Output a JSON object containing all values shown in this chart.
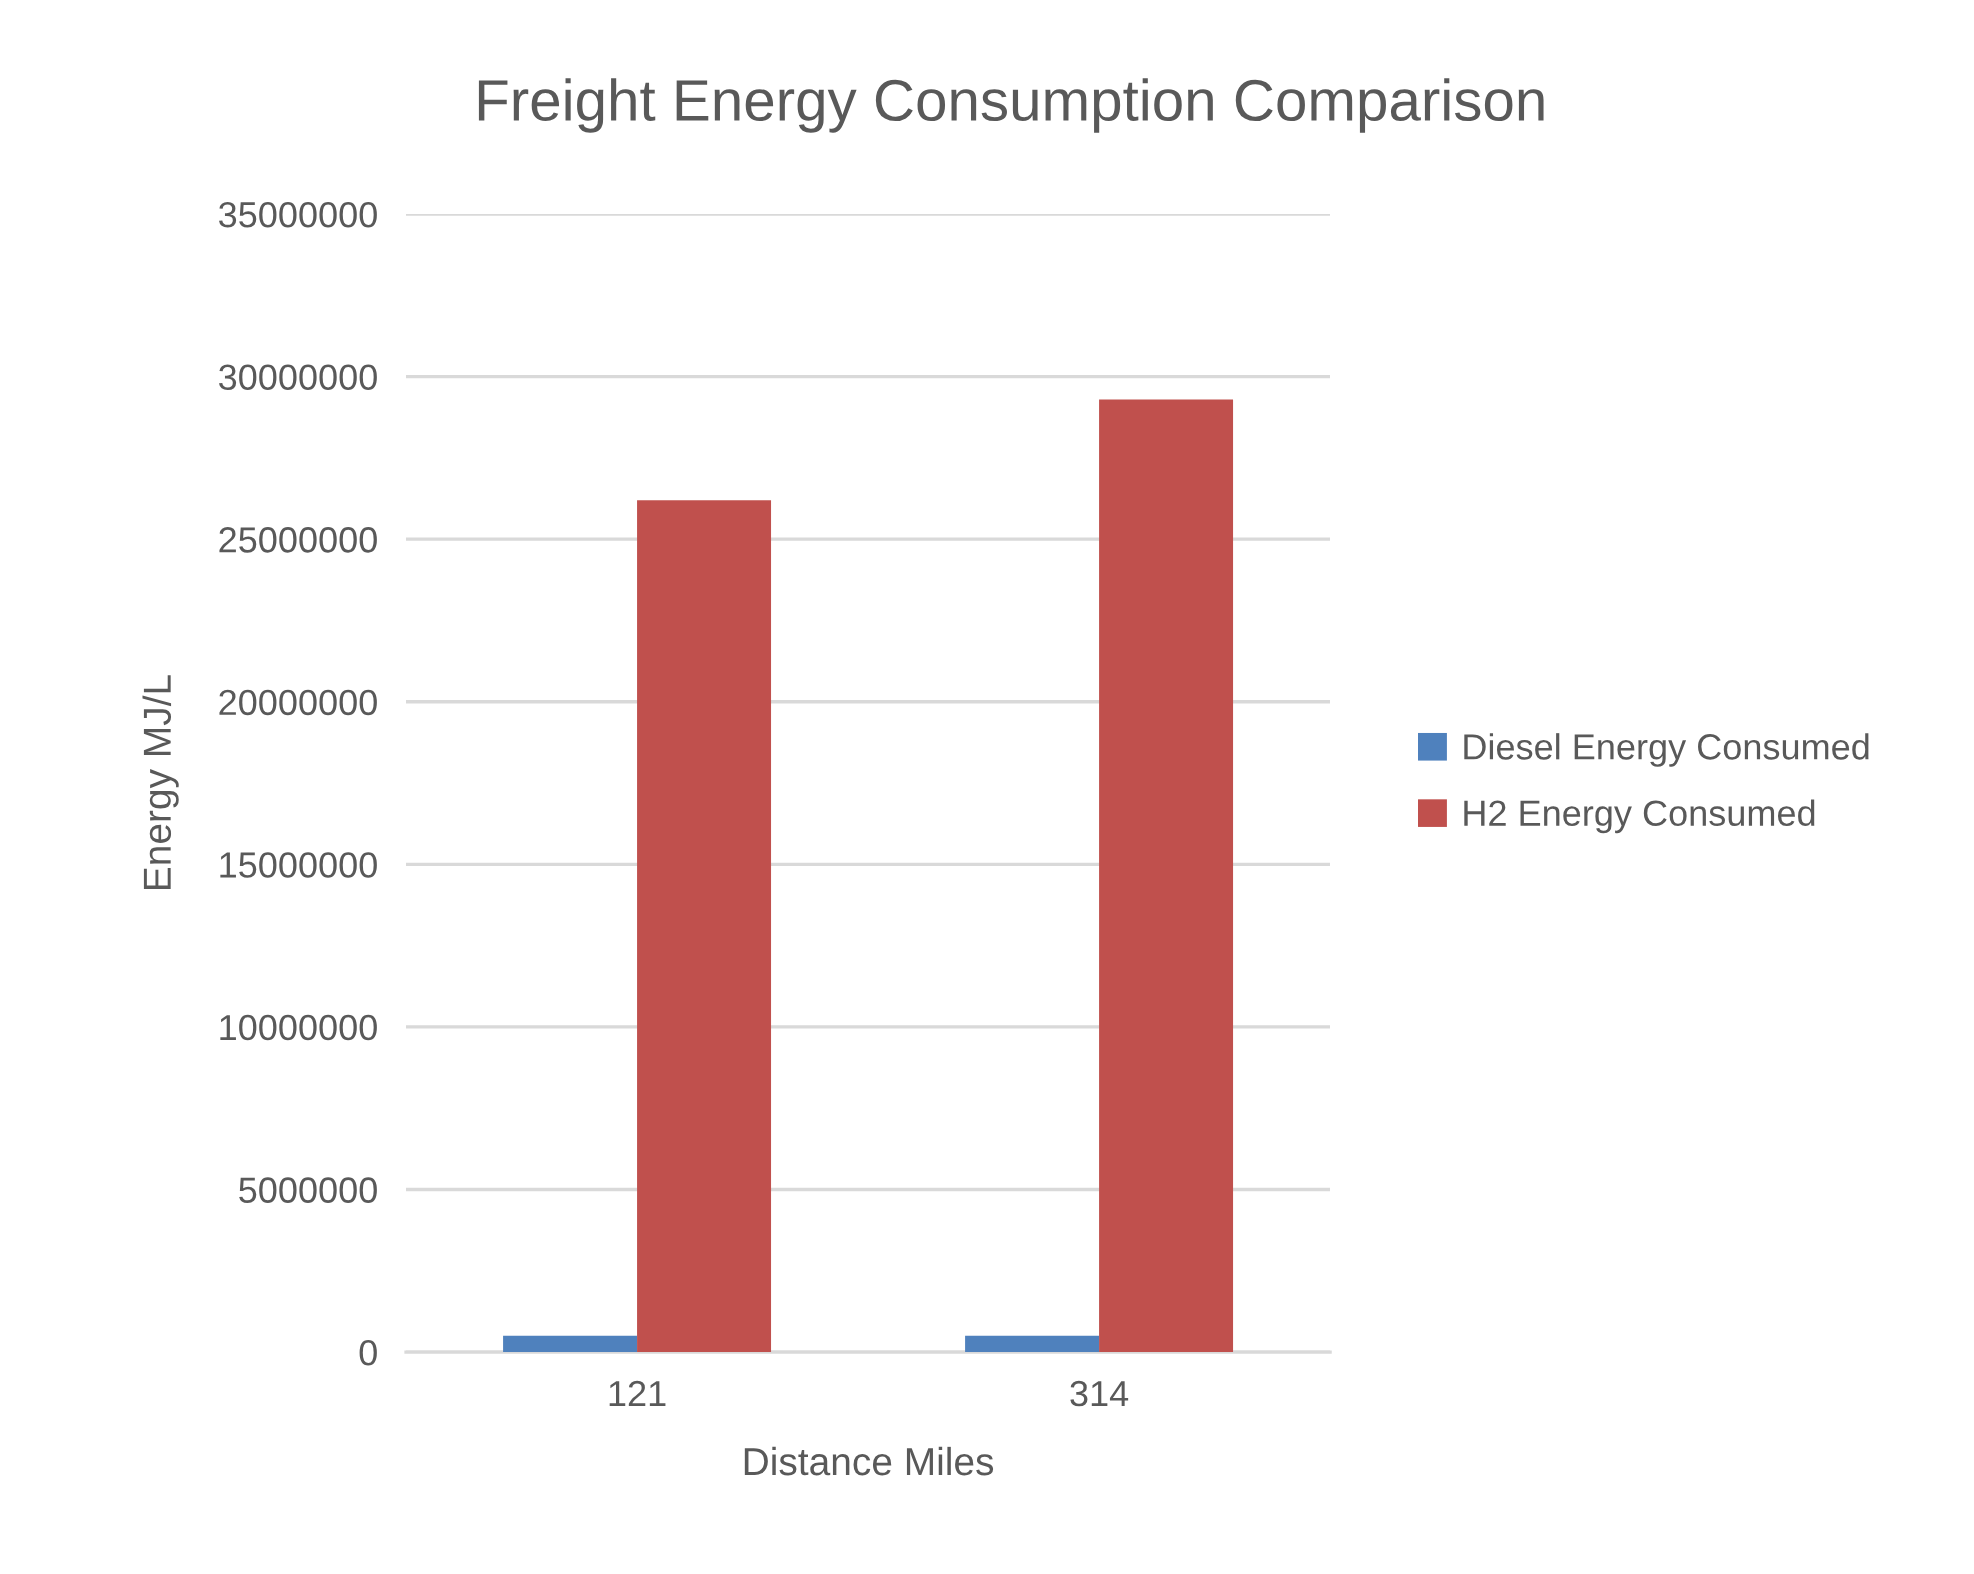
{
  "chart_data": {
    "type": "bar",
    "title": "Freight Energy Consumption Comparison",
    "xlabel": "Distance Miles",
    "ylabel": "Energy MJ/L",
    "categories": [
      "121",
      "314"
    ],
    "series": [
      {
        "name": "Diesel Energy Consumed",
        "color": "#4f81bd",
        "values": [
          500000,
          500000
        ]
      },
      {
        "name": "H2 Energy Consumed",
        "color": "#c0504d",
        "values": [
          26200000,
          29300000
        ]
      }
    ],
    "ylim": [
      0,
      35000000
    ],
    "yticks": [
      0,
      5000000,
      10000000,
      15000000,
      20000000,
      25000000,
      30000000,
      35000000
    ],
    "grid": "y",
    "legend": "right"
  }
}
